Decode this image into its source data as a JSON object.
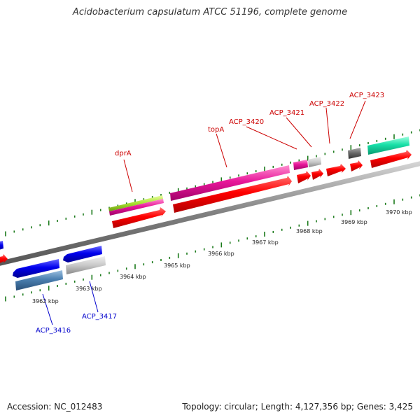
{
  "title": "Acidobacterium capsulatum ATCC 51196, complete genome",
  "footer": {
    "accession": "Accession: NC_012483",
    "summary": "Topology: circular; Length: 4,127,356 bp; Genes: 3,425"
  },
  "colors": {
    "forward_gene": "#ff0000",
    "reverse_gene": "#0000ee",
    "backbone": "#808080",
    "tick": "#1a7a1a",
    "forward_label": "#cc0000",
    "reverse_label": "#0000cc"
  },
  "gene_labels": [
    {
      "text": "dprA",
      "strand": "forward"
    },
    {
      "text": "topA",
      "strand": "forward"
    },
    {
      "text": "ACP_3420",
      "strand": "forward"
    },
    {
      "text": "ACP_3421",
      "strand": "forward"
    },
    {
      "text": "ACP_3422",
      "strand": "forward"
    },
    {
      "text": "ACP_3423",
      "strand": "forward"
    },
    {
      "text": "ACP_3416",
      "strand": "reverse"
    },
    {
      "text": "ACP_3417",
      "strand": "reverse"
    }
  ],
  "scale_labels": [
    "3962 kbp",
    "3963 kbp",
    "3964 kbp",
    "3965 kbp",
    "3966 kbp",
    "3967 kbp",
    "3968 kbp",
    "3969 kbp",
    "3970 kbp"
  ]
}
